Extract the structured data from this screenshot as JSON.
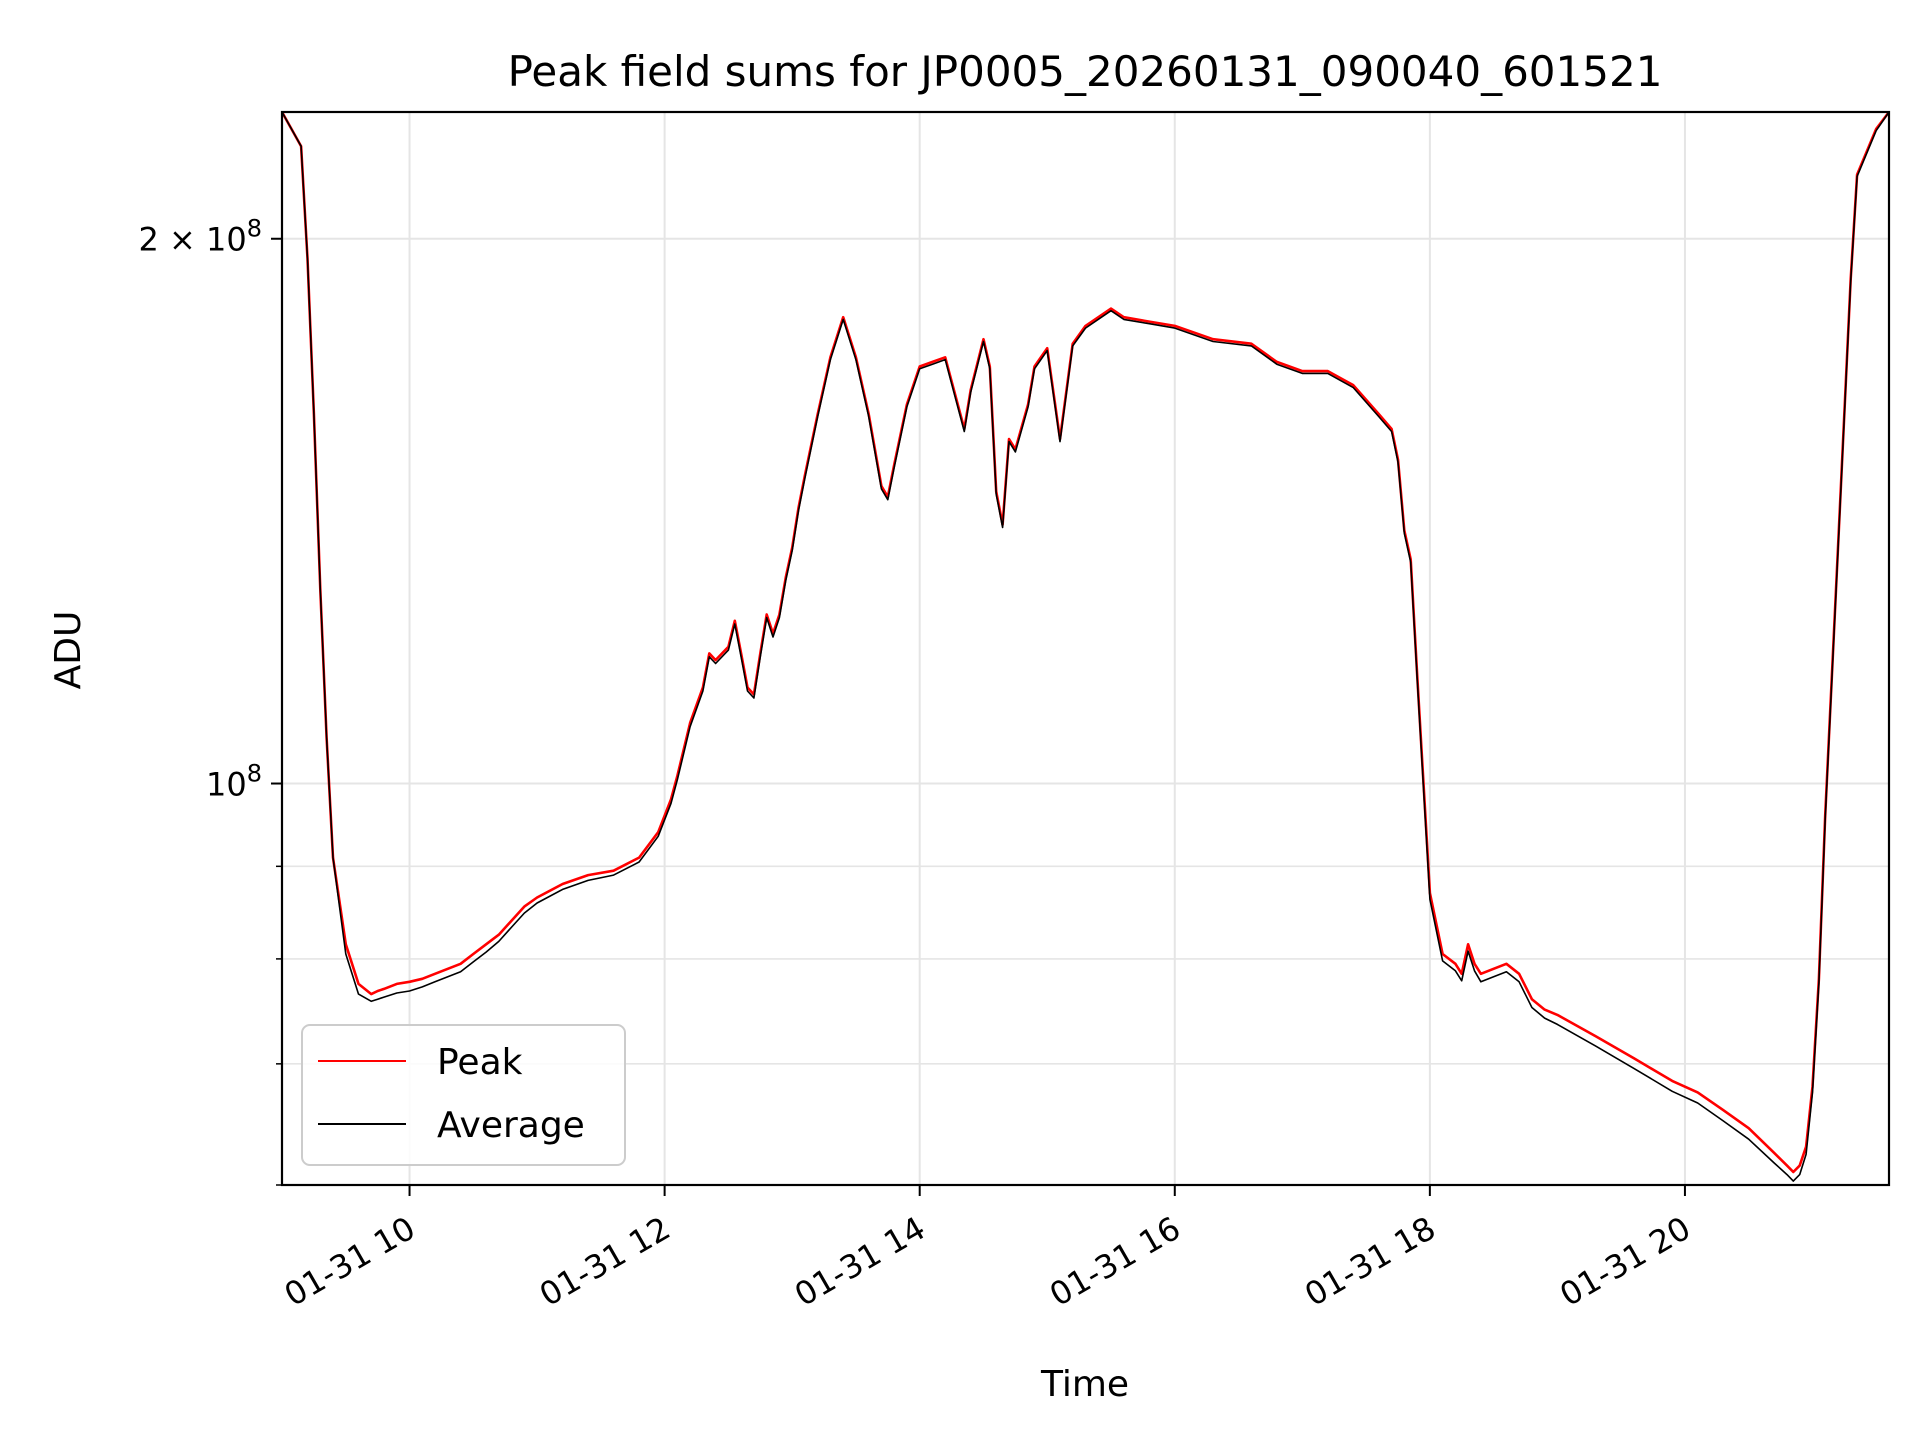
{
  "chart_data": {
    "type": "line",
    "title": "Peak field sums for JP0005_20260131_090040_601521",
    "xlabel": "Time",
    "ylabel": "ADU",
    "yscale": "log",
    "xlim": [
      9.0,
      21.6
    ],
    "ylim": [
      60000000,
      235000000
    ],
    "x_unit": "hours of 2026-01-31",
    "x_ticks": [
      10,
      12,
      14,
      16,
      18,
      20
    ],
    "x_tick_labels": [
      "01-31 10",
      "01-31 12",
      "01-31 14",
      "01-31 16",
      "01-31 18",
      "01-31 20"
    ],
    "y_major_ticks": [
      100000000,
      200000000
    ],
    "y_tick_labels": [
      {
        "base": "10",
        "exp": "8",
        "mant": ""
      },
      {
        "base": "10",
        "exp": "8",
        "mant": "2 × "
      }
    ],
    "y_minor_ticks": [
      60000000,
      70000000,
      80000000,
      90000000
    ],
    "grid": true,
    "legend": {
      "position": "lower-left",
      "entries": [
        "Peak",
        "Average"
      ]
    },
    "colors": {
      "Peak": "#ff0000",
      "Average": "#000000",
      "grid": "#e5e5e5"
    },
    "series": [
      {
        "name": "Peak",
        "x": [
          9.0,
          9.15,
          9.2,
          9.25,
          9.3,
          9.35,
          9.4,
          9.5,
          9.6,
          9.7,
          9.75,
          9.8,
          9.9,
          10.0,
          10.1,
          10.2,
          10.3,
          10.4,
          10.5,
          10.6,
          10.7,
          10.8,
          10.9,
          11.0,
          11.2,
          11.4,
          11.6,
          11.8,
          11.95,
          12.05,
          12.1,
          12.2,
          12.3,
          12.35,
          12.4,
          12.5,
          12.55,
          12.6,
          12.65,
          12.7,
          12.75,
          12.8,
          12.85,
          12.9,
          12.95,
          13.0,
          13.05,
          13.1,
          13.2,
          13.3,
          13.4,
          13.5,
          13.6,
          13.7,
          13.75,
          13.8,
          13.9,
          14.0,
          14.1,
          14.2,
          14.35,
          14.4,
          14.5,
          14.55,
          14.6,
          14.65,
          14.7,
          14.75,
          14.85,
          14.9,
          15.0,
          15.1,
          15.2,
          15.3,
          15.5,
          15.6,
          15.8,
          16.0,
          16.3,
          16.6,
          16.8,
          17.0,
          17.2,
          17.4,
          17.6,
          17.7,
          17.75,
          17.8,
          17.85,
          17.9,
          18.0,
          18.1,
          18.2,
          18.25,
          18.3,
          18.35,
          18.4,
          18.5,
          18.6,
          18.7,
          18.8,
          18.9,
          19.0,
          19.3,
          19.6,
          19.9,
          20.1,
          20.3,
          20.5,
          20.7,
          20.8,
          20.85,
          20.9,
          20.95,
          21.0,
          21.05,
          21.1,
          21.2,
          21.3,
          21.35,
          21.5,
          21.6
        ],
        "y": [
          235000000,
          225000000,
          195000000,
          160000000,
          128000000,
          106000000,
          91000000,
          81500000,
          77500000,
          76500000,
          76800000,
          77000000,
          77500000,
          77700000,
          78000000,
          78500000,
          79000000,
          79500000,
          80500000,
          81500000,
          82500000,
          84000000,
          85500000,
          86500000,
          88000000,
          89000000,
          89500000,
          91000000,
          94000000,
          98000000,
          101000000,
          108000000,
          113000000,
          118000000,
          117000000,
          119000000,
          123000000,
          118000000,
          113000000,
          112000000,
          118000000,
          124000000,
          121000000,
          124000000,
          130000000,
          135000000,
          142000000,
          148000000,
          160000000,
          172000000,
          181000000,
          172000000,
          160000000,
          146000000,
          144000000,
          150000000,
          162000000,
          170000000,
          171000000,
          172000000,
          157000000,
          165000000,
          176000000,
          170000000,
          145000000,
          139000000,
          155000000,
          153000000,
          162000000,
          170000000,
          174000000,
          155000000,
          175000000,
          179000000,
          183000000,
          181000000,
          180000000,
          179000000,
          176000000,
          175000000,
          171000000,
          169000000,
          169000000,
          166000000,
          160000000,
          157000000,
          151000000,
          138000000,
          133000000,
          115000000,
          87000000,
          80500000,
          79500000,
          78500000,
          81500000,
          79500000,
          78500000,
          79000000,
          79500000,
          78500000,
          76000000,
          75000000,
          74500000,
          72500000,
          70500000,
          68500000,
          67500000,
          66000000,
          64500000,
          62500000,
          61500000,
          61000000,
          61500000,
          63000000,
          68000000,
          78000000,
          96000000,
          135000000,
          190000000,
          217000000,
          230000000,
          235000000
        ]
      },
      {
        "name": "Average",
        "x": [
          9.0,
          9.15,
          9.2,
          9.25,
          9.3,
          9.35,
          9.4,
          9.5,
          9.6,
          9.7,
          9.75,
          9.8,
          9.9,
          10.0,
          10.1,
          10.2,
          10.3,
          10.4,
          10.5,
          10.6,
          10.7,
          10.8,
          10.9,
          11.0,
          11.2,
          11.4,
          11.6,
          11.8,
          11.95,
          12.05,
          12.1,
          12.2,
          12.3,
          12.35,
          12.4,
          12.5,
          12.55,
          12.6,
          12.65,
          12.7,
          12.75,
          12.8,
          12.85,
          12.9,
          12.95,
          13.0,
          13.05,
          13.1,
          13.2,
          13.3,
          13.4,
          13.5,
          13.6,
          13.7,
          13.75,
          13.8,
          13.9,
          14.0,
          14.1,
          14.2,
          14.35,
          14.4,
          14.5,
          14.55,
          14.6,
          14.65,
          14.7,
          14.75,
          14.85,
          14.9,
          15.0,
          15.1,
          15.2,
          15.3,
          15.5,
          15.6,
          15.8,
          16.0,
          16.3,
          16.6,
          16.8,
          17.0,
          17.2,
          17.4,
          17.6,
          17.7,
          17.75,
          17.8,
          17.85,
          17.9,
          18.0,
          18.1,
          18.2,
          18.25,
          18.3,
          18.35,
          18.4,
          18.5,
          18.6,
          18.7,
          18.8,
          18.9,
          19.0,
          19.3,
          19.6,
          19.9,
          20.1,
          20.3,
          20.5,
          20.7,
          20.8,
          20.85,
          20.9,
          20.95,
          21.0,
          21.05,
          21.1,
          21.2,
          21.3,
          21.35,
          21.5,
          21.6
        ],
        "y": [
          235000000,
          225000000,
          195000000,
          160000000,
          128000000,
          106000000,
          91000000,
          80500000,
          76500000,
          75800000,
          76000000,
          76200000,
          76600000,
          76800000,
          77200000,
          77700000,
          78200000,
          78700000,
          79700000,
          80700000,
          81800000,
          83300000,
          84800000,
          85900000,
          87400000,
          88400000,
          89000000,
          90500000,
          93500000,
          97500000,
          100500000,
          107500000,
          112500000,
          117500000,
          116500000,
          118500000,
          122500000,
          117500000,
          112500000,
          111500000,
          117500000,
          123500000,
          120500000,
          123500000,
          129500000,
          134500000,
          141500000,
          147500000,
          159500000,
          171500000,
          180500000,
          171500000,
          159500000,
          145500000,
          143500000,
          149500000,
          161500000,
          169500000,
          170500000,
          171500000,
          156500000,
          164500000,
          175500000,
          169500000,
          144500000,
          138500000,
          154500000,
          152500000,
          161500000,
          169500000,
          173500000,
          154500000,
          174500000,
          178500000,
          182500000,
          180500000,
          179500000,
          178500000,
          175500000,
          174500000,
          170500000,
          168500000,
          168500000,
          165500000,
          159500000,
          156500000,
          150500000,
          137500000,
          132500000,
          114500000,
          86300000,
          79800000,
          78800000,
          77800000,
          80800000,
          78800000,
          77700000,
          78200000,
          78700000,
          77700000,
          75200000,
          74200000,
          73600000,
          71600000,
          69600000,
          67600000,
          66600000,
          65100000,
          63600000,
          61700000,
          60800000,
          60300000,
          60800000,
          62400000,
          67500000,
          77600000,
          95600000,
          134500000,
          189500000,
          216500000,
          229500000,
          235000000
        ]
      }
    ]
  }
}
